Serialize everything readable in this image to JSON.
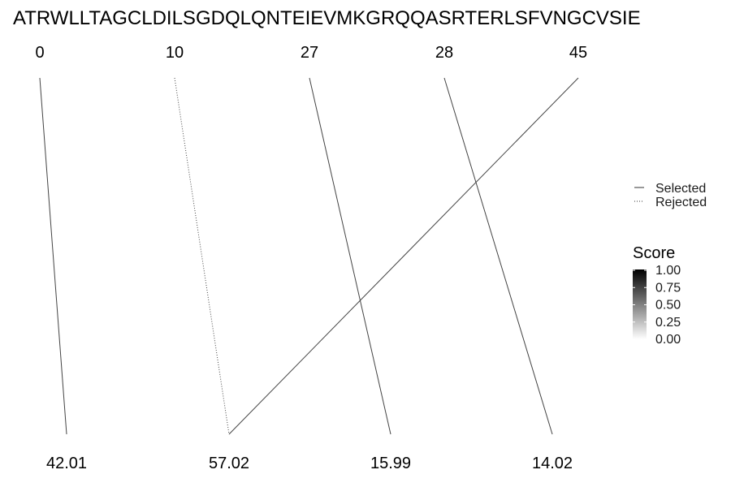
{
  "chart_data": {
    "type": "parallel-lines",
    "sequence": "ATRWLLTAGCLDILSGDQLQNTEIEVMKGRQQASRTERLSFVNGCVSIE",
    "top_labels": [
      "0",
      "10",
      "27",
      "28",
      "45"
    ],
    "bottom_labels": [
      "42.01",
      "57.02",
      "15.99",
      "14.02"
    ],
    "links": [
      {
        "from": "0",
        "to": "42.01",
        "status": "Selected",
        "score": 0.5
      },
      {
        "from": "10",
        "to": "57.02",
        "status": "Rejected",
        "score": 0.5
      },
      {
        "from": "27",
        "to": "15.99",
        "status": "Selected",
        "score": 0.5
      },
      {
        "from": "28",
        "to": "14.02",
        "status": "Selected",
        "score": 0.5
      },
      {
        "from": "45",
        "to": "57.02",
        "status": "Selected",
        "score": 0.5
      }
    ],
    "legend": {
      "position": "right",
      "linetype_entries": [
        "Selected",
        "Rejected"
      ],
      "score_title": "Score",
      "score_ticks": [
        "1.00",
        "0.75",
        "0.50",
        "0.25",
        "0.00"
      ],
      "score_range": [
        0,
        1
      ]
    },
    "grid": false
  }
}
